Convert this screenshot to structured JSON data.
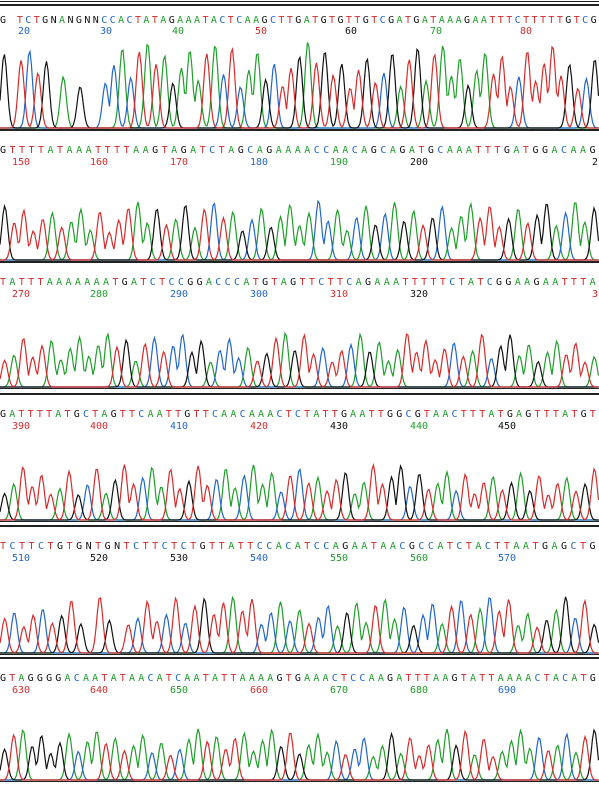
{
  "chart_data": {
    "type": "line",
    "title": "",
    "xlabel": "",
    "ylabel": "",
    "grid": false,
    "base_colors": {
      "A": "#1f9e2a",
      "C": "#2166c8",
      "G": "#111111",
      "T": "#d62b2b",
      "N": "#111111"
    },
    "rows": [
      {
        "sequence": "G TCTGNANGNNCCACTATAGAAATACTCAAGCTTGATGTGTTGTCGATGATAAAGAATTTCTTTTTGTCG",
        "ticks": [
          {
            "label": "20",
            "color": "#2166c8"
          },
          {
            "label": "30",
            "color": "#2166c8"
          },
          {
            "label": "40",
            "color": "#1f9e2a"
          },
          {
            "label": "50",
            "color": "#d62b2b"
          },
          {
            "label": "60",
            "color": "#111111"
          },
          {
            "label": "70",
            "color": "#1f9e2a"
          },
          {
            "label": "80",
            "color": "#d62b2b"
          }
        ]
      },
      {
        "sequence": "GTTTTATAAATTTTAAGTAGATCTAGCAGAAAACCAACAGCAGATGCAAATTTGATGGACAAG",
        "ticks": [
          {
            "label": "150",
            "color": "#d62b2b"
          },
          {
            "label": "160",
            "color": "#d62b2b"
          },
          {
            "label": "170",
            "color": "#d62b2b"
          },
          {
            "label": "180",
            "color": "#2166c8"
          },
          {
            "label": "190",
            "color": "#1f9e2a"
          },
          {
            "label": "200",
            "color": "#111111"
          },
          {
            "label": "2",
            "color": "#111111"
          }
        ]
      },
      {
        "sequence": "TATTTAAAAAAATGATCTCCGGACCCATGTAGTTCTTCAGAAATTTTTCTATCGGAAGAATTTA",
        "ticks": [
          {
            "label": "270",
            "color": "#d62b2b"
          },
          {
            "label": "280",
            "color": "#1f9e2a"
          },
          {
            "label": "290",
            "color": "#2166c8"
          },
          {
            "label": "300",
            "color": "#2166c8"
          },
          {
            "label": "310",
            "color": "#d62b2b"
          },
          {
            "label": "320",
            "color": "#111111"
          },
          {
            "label": "3",
            "color": "#d62b2b"
          }
        ]
      },
      {
        "sequence": "GATTTTATGCTAGTTCAATTGTTCAACAAACTCTATTGAATTGGCGTAACTTTATGAGTTTATGT",
        "ticks": [
          {
            "label": "390",
            "color": "#d62b2b"
          },
          {
            "label": "400",
            "color": "#d62b2b"
          },
          {
            "label": "410",
            "color": "#2166c8"
          },
          {
            "label": "420",
            "color": "#d62b2b"
          },
          {
            "label": "430",
            "color": "#111111"
          },
          {
            "label": "440",
            "color": "#1f9e2a"
          },
          {
            "label": "450",
            "color": "#111111"
          }
        ]
      },
      {
        "sequence": "TCTTCTGTGNTGNTCTTCTCTGTTATTCCACATCCAGAATAACGCCATCTACTTAATGAGCTG",
        "ticks": [
          {
            "label": "510",
            "color": "#2166c8"
          },
          {
            "label": "520",
            "color": "#111111"
          },
          {
            "label": "530",
            "color": "#111111"
          },
          {
            "label": "540",
            "color": "#2166c8"
          },
          {
            "label": "550",
            "color": "#1f9e2a"
          },
          {
            "label": "560",
            "color": "#1f9e2a"
          },
          {
            "label": "570",
            "color": "#2166c8"
          }
        ]
      },
      {
        "sequence": "GTAGGGGACAATATAACATCAATATTAAAAGTGAAACTCCAAGATTTAAGTATTAAAACTACATG",
        "ticks": [
          {
            "label": "630",
            "color": "#d62b2b"
          },
          {
            "label": "640",
            "color": "#d62b2b"
          },
          {
            "label": "650",
            "color": "#1f9e2a"
          },
          {
            "label": "660",
            "color": "#d62b2b"
          },
          {
            "label": "670",
            "color": "#1f9e2a"
          },
          {
            "label": "680",
            "color": "#1f9e2a"
          },
          {
            "label": "690",
            "color": "#2166c8"
          }
        ]
      }
    ]
  }
}
